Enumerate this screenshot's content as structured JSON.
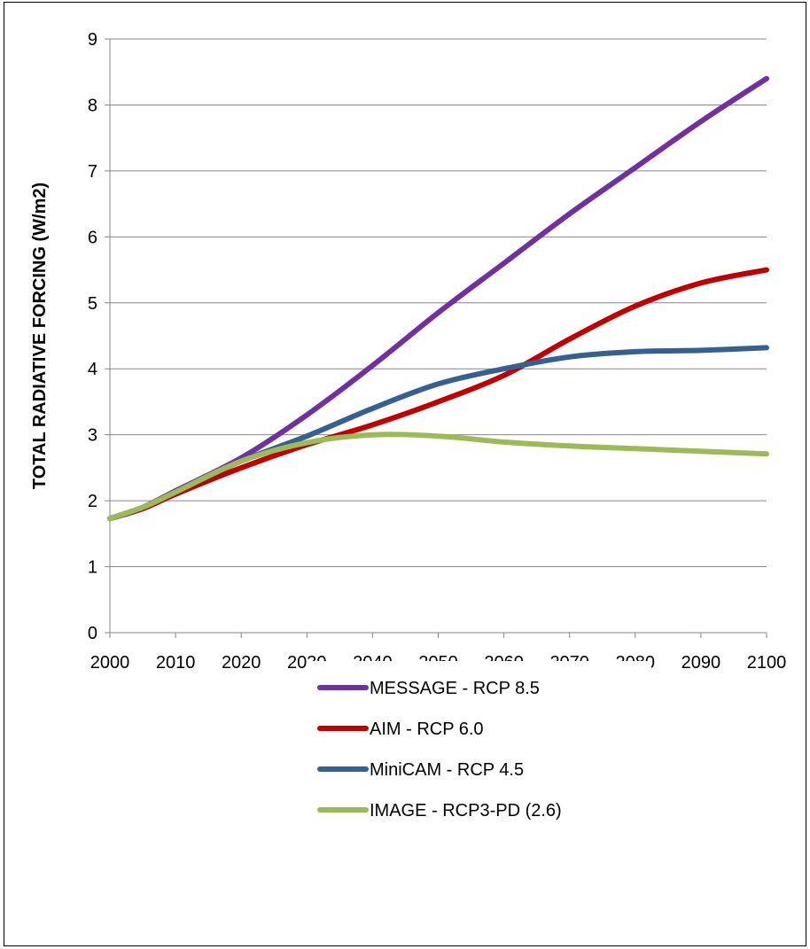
{
  "chart_data": {
    "type": "line",
    "title": "",
    "xlabel": "",
    "ylabel": "TOTAL RADIATIVE FORCING (W/m2)",
    "xlim": [
      2000,
      2100
    ],
    "ylim": [
      0,
      9
    ],
    "x_ticks": [
      "2000",
      "2010",
      "2020",
      "2030",
      "2040",
      "2050",
      "2060",
      "2070",
      "2080",
      "2090",
      "2100"
    ],
    "y_ticks": [
      "0",
      "1",
      "2",
      "3",
      "4",
      "5",
      "6",
      "7",
      "8",
      "9"
    ],
    "grid": "horizontal",
    "legend_position": "lower-center",
    "series": [
      {
        "name": "MESSAGE - RCP 8.5",
        "color": "#7030a0",
        "x": [
          2000,
          2005,
          2010,
          2020,
          2030,
          2040,
          2050,
          2060,
          2070,
          2080,
          2090,
          2100
        ],
        "y": [
          1.73,
          1.9,
          2.15,
          2.65,
          3.3,
          4.05,
          4.85,
          5.6,
          6.35,
          7.05,
          7.75,
          8.4
        ]
      },
      {
        "name": "AIM - RCP 6.0",
        "color": "#c00000",
        "x": [
          2000,
          2005,
          2010,
          2020,
          2030,
          2040,
          2050,
          2060,
          2070,
          2080,
          2090,
          2100
        ],
        "y": [
          1.73,
          1.88,
          2.1,
          2.5,
          2.85,
          3.15,
          3.5,
          3.9,
          4.45,
          4.95,
          5.3,
          5.5
        ]
      },
      {
        "name": "MiniCAM - RCP 4.5",
        "color": "#376092",
        "x": [
          2000,
          2005,
          2010,
          2020,
          2030,
          2040,
          2050,
          2060,
          2070,
          2080,
          2090,
          2100
        ],
        "y": [
          1.73,
          1.9,
          2.13,
          2.6,
          2.98,
          3.4,
          3.77,
          4.0,
          4.18,
          4.26,
          4.28,
          4.32
        ]
      },
      {
        "name": "IMAGE - RCP3-PD (2.6)",
        "color": "#9bbb59",
        "x": [
          2000,
          2005,
          2010,
          2020,
          2030,
          2040,
          2050,
          2060,
          2070,
          2080,
          2090,
          2100
        ],
        "y": [
          1.73,
          1.9,
          2.13,
          2.6,
          2.88,
          3.0,
          2.98,
          2.89,
          2.83,
          2.79,
          2.75,
          2.71
        ]
      }
    ]
  }
}
